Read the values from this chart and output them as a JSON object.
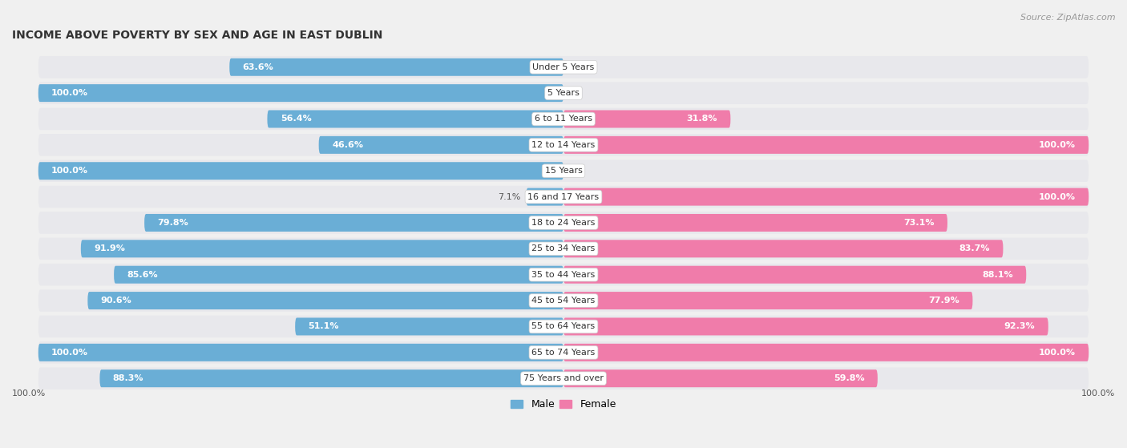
{
  "title": "INCOME ABOVE POVERTY BY SEX AND AGE IN EAST DUBLIN",
  "source": "Source: ZipAtlas.com",
  "categories": [
    "Under 5 Years",
    "5 Years",
    "6 to 11 Years",
    "12 to 14 Years",
    "15 Years",
    "16 and 17 Years",
    "18 to 24 Years",
    "25 to 34 Years",
    "35 to 44 Years",
    "45 to 54 Years",
    "55 to 64 Years",
    "65 to 74 Years",
    "75 Years and over"
  ],
  "male": [
    63.6,
    100.0,
    56.4,
    46.6,
    100.0,
    7.1,
    79.8,
    91.9,
    85.6,
    90.6,
    51.1,
    100.0,
    88.3
  ],
  "female": [
    0.0,
    0.0,
    31.8,
    100.0,
    0.0,
    100.0,
    73.1,
    83.7,
    88.1,
    77.9,
    92.3,
    100.0,
    59.8
  ],
  "male_color": "#6aaed6",
  "female_color": "#f07caa",
  "male_label": "Male",
  "female_label": "Female",
  "background_color": "#f0f0f0",
  "bar_bg_color": "#e8e8e8",
  "title_fontsize": 10,
  "source_fontsize": 8,
  "label_fontsize": 8,
  "cat_fontsize": 8
}
